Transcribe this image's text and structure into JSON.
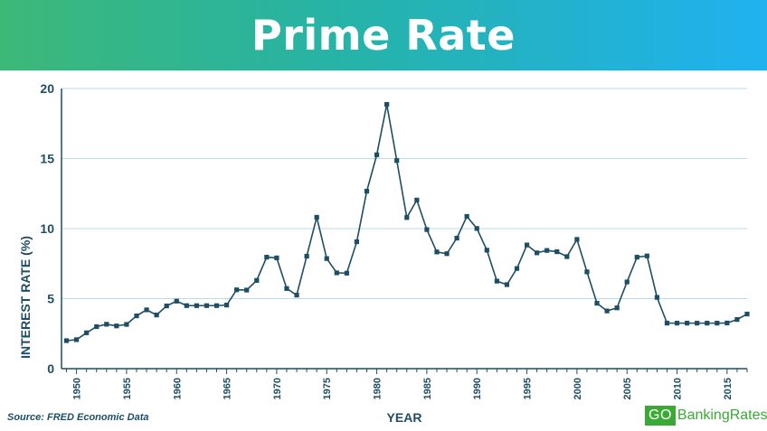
{
  "header": {
    "title": "Prime Rate"
  },
  "footer": {
    "source": "Source: FRED Economic Data",
    "brand_prefix": "GO",
    "brand_suffix": "BankingRates"
  },
  "colors": {
    "line": "#1d4e63",
    "grid": "#b9dce8",
    "banner_start": "#3cb878",
    "banner_end": "#1fb2f0",
    "brand": "#3aaa35"
  },
  "chart_data": {
    "type": "line",
    "title": "Prime Rate",
    "xlabel": "YEAR",
    "ylabel": "INTEREST RATE (%)",
    "xlim": [
      1948.5,
      2017
    ],
    "ylim": [
      0,
      20
    ],
    "yticks": [
      0,
      5,
      10,
      15,
      20
    ],
    "xticks": [
      1950,
      1955,
      1960,
      1965,
      1970,
      1975,
      1980,
      1985,
      1990,
      1995,
      2000,
      2005,
      2010,
      2015
    ],
    "grid": "horizontal",
    "series": [
      {
        "x": [
          1949,
          1950,
          1951,
          1952,
          1953,
          1954,
          1955,
          1956,
          1957,
          1958,
          1959,
          1960,
          1961,
          1962,
          1963,
          1964,
          1965,
          1966,
          1967,
          1968,
          1969,
          1970,
          1971,
          1972,
          1973,
          1974,
          1975,
          1976,
          1977,
          1978,
          1979,
          1980,
          1981,
          1982,
          1983,
          1984,
          1985,
          1986,
          1987,
          1988,
          1989,
          1990,
          1991,
          1992,
          1993,
          1994,
          1995,
          1996,
          1997,
          1998,
          1999,
          2000,
          2001,
          2002,
          2003,
          2004,
          2005,
          2006,
          2007,
          2008,
          2009,
          2010,
          2011,
          2012,
          2013,
          2014,
          2015,
          2016,
          2017
        ],
        "values": [
          2.0,
          2.07,
          2.56,
          3.0,
          3.17,
          3.05,
          3.16,
          3.77,
          4.2,
          3.83,
          4.48,
          4.82,
          4.5,
          4.5,
          4.5,
          4.5,
          4.54,
          5.63,
          5.61,
          6.3,
          7.96,
          7.91,
          5.72,
          5.25,
          8.03,
          10.81,
          7.86,
          6.84,
          6.82,
          9.06,
          12.67,
          15.27,
          18.87,
          14.86,
          10.79,
          12.04,
          9.93,
          8.33,
          8.21,
          9.32,
          10.87,
          10.01,
          8.46,
          6.25,
          6.0,
          7.15,
          8.83,
          8.27,
          8.44,
          8.35,
          8.0,
          9.23,
          6.91,
          4.67,
          4.12,
          4.34,
          6.19,
          7.96,
          8.05,
          5.09,
          3.25,
          3.25,
          3.25,
          3.25,
          3.25,
          3.25,
          3.26,
          3.51,
          3.9
        ]
      }
    ]
  }
}
